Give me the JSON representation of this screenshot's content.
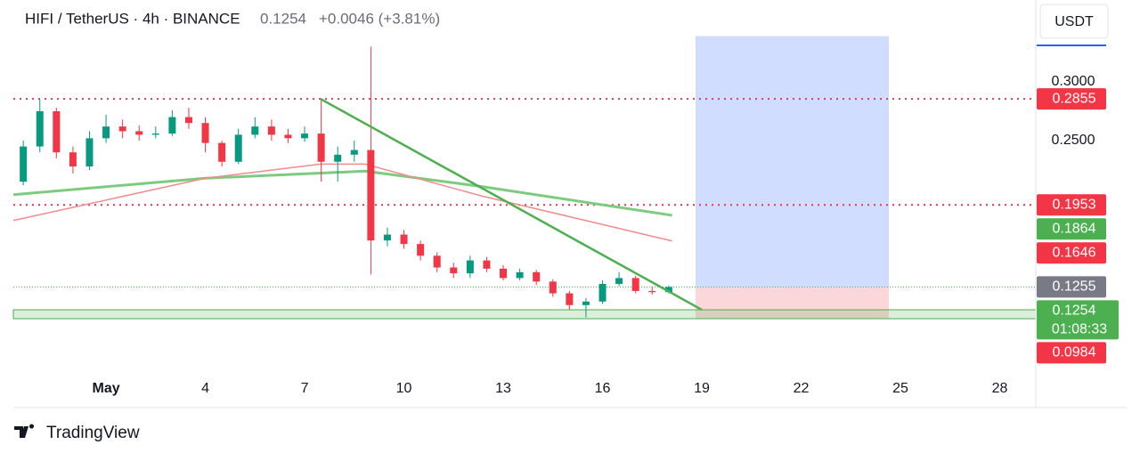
{
  "header": {
    "symbol": "HIFI / TetherUS · 4h · BINANCE",
    "price": "0.1254",
    "change": "+0.0046 (+3.81%)"
  },
  "currency": "USDT",
  "brand": "TradingView",
  "chart_data": {
    "type": "candlestick",
    "x": [
      -1.5,
      -1,
      -0.5,
      0,
      0.5,
      1,
      1.5,
      2,
      2.5,
      3,
      3.5,
      4,
      4.5,
      5,
      5.5,
      6,
      6.5,
      7,
      7.5,
      8,
      8.5,
      9,
      9.5,
      10,
      10.5,
      11,
      11.5,
      12,
      12.5,
      13,
      13.5,
      14,
      14.5,
      15,
      15.5,
      16,
      16.5,
      17,
      17.5,
      18
    ],
    "open": [
      0.215,
      0.245,
      0.275,
      0.24,
      0.228,
      0.252,
      0.262,
      0.258,
      0.255,
      0.256,
      0.27,
      0.265,
      0.248,
      0.232,
      0.255,
      0.262,
      0.255,
      0.252,
      0.256,
      0.232,
      0.238,
      0.242,
      0.165,
      0.17,
      0.162,
      0.152,
      0.142,
      0.137,
      0.148,
      0.141,
      0.133,
      0.138,
      0.13,
      0.12,
      0.11,
      0.113,
      0.128,
      0.133,
      0.122,
      0.121
    ],
    "high": [
      0.25,
      0.285,
      0.278,
      0.245,
      0.258,
      0.272,
      0.268,
      0.263,
      0.262,
      0.276,
      0.278,
      0.27,
      0.25,
      0.26,
      0.27,
      0.268,
      0.26,
      0.262,
      0.285,
      0.245,
      0.25,
      0.33,
      0.176,
      0.174,
      0.165,
      0.155,
      0.146,
      0.152,
      0.151,
      0.144,
      0.141,
      0.14,
      0.132,
      0.122,
      0.116,
      0.131,
      0.138,
      0.135,
      0.126,
      0.1265
    ],
    "low": [
      0.212,
      0.24,
      0.235,
      0.222,
      0.225,
      0.248,
      0.252,
      0.25,
      0.252,
      0.254,
      0.26,
      0.24,
      0.228,
      0.23,
      0.252,
      0.25,
      0.248,
      0.249,
      0.215,
      0.215,
      0.232,
      0.136,
      0.16,
      0.158,
      0.148,
      0.138,
      0.133,
      0.133,
      0.138,
      0.131,
      0.131,
      0.127,
      0.117,
      0.106,
      0.0995,
      0.111,
      0.126,
      0.12,
      0.119,
      0.12
    ],
    "close": [
      0.245,
      0.275,
      0.24,
      0.228,
      0.252,
      0.262,
      0.258,
      0.255,
      0.256,
      0.27,
      0.265,
      0.248,
      0.232,
      0.255,
      0.262,
      0.255,
      0.252,
      0.256,
      0.232,
      0.238,
      0.242,
      0.165,
      0.17,
      0.162,
      0.152,
      0.142,
      0.137,
      0.148,
      0.141,
      0.133,
      0.138,
      0.13,
      0.12,
      0.11,
      0.113,
      0.128,
      0.133,
      0.122,
      0.121,
      0.1254
    ],
    "up_color": "#089981",
    "down_color": "#f23645",
    "moving_averages": [
      {
        "color": "#7dcb7f",
        "x": [
          -1.8,
          4,
          8.83,
          12.33,
          18.1
        ],
        "values": [
          0.204,
          0.218,
          0.224,
          0.211,
          0.1864
        ]
      },
      {
        "color": "#f08c8c",
        "x": [
          -1.8,
          4,
          7.48,
          8.83,
          12.33,
          18.1
        ],
        "values": [
          0.182,
          0.218,
          0.23,
          0.23,
          0.203,
          0.1646
        ]
      }
    ],
    "trendline": {
      "color": "#4caf50",
      "x": [
        7.48,
        19.0
      ],
      "values": [
        0.2855,
        0.106
      ]
    },
    "levels": [
      {
        "value": 0.2855,
        "color": "#e53950"
      },
      {
        "value": 0.1953,
        "color": "#e53950"
      }
    ],
    "support_zone": {
      "values": [
        0.0984,
        0.106
      ],
      "color": "#4caf50"
    },
    "position": {
      "x": [
        18.81,
        24.65
      ],
      "entry": 0.1254,
      "target": 0.339,
      "stop": 0.0984
    },
    "xlim": [
      -1.8,
      29.09
    ],
    "ylim": [
      0.0515,
      0.3697
    ],
    "xticks": [
      {
        "value": 1,
        "label": "May"
      },
      4,
      7,
      10,
      13,
      16,
      19,
      22,
      25,
      28
    ],
    "yticks": [
      {
        "value": 0.3,
        "label": "0.3000"
      },
      {
        "value": 0.25,
        "label": "0.2500"
      }
    ],
    "price_badges": [
      {
        "value": 0.2855,
        "color": "#f23645"
      },
      {
        "value": 0.1953,
        "color": "#f23645"
      },
      {
        "value": 0.1864,
        "color": "#4caf50"
      },
      {
        "value": 0.1646,
        "color": "#f23645"
      },
      {
        "value": 0.1255,
        "color": "#787b86"
      },
      {
        "value": 0.1254,
        "color": "#4caf50",
        "countdown": "01:08:33"
      },
      {
        "value": 0.0984,
        "color": "#f23645"
      }
    ]
  }
}
